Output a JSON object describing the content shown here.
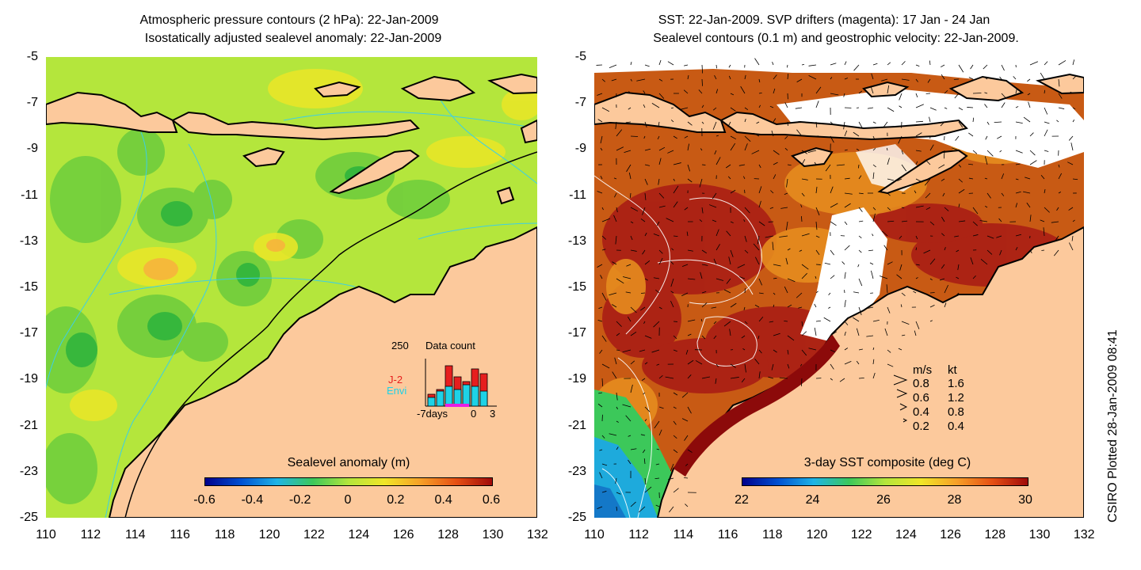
{
  "left": {
    "title_line1": "Atmospheric pressure contours (2 hPa): 22-Jan-2009",
    "title_line2": "Isostatically adjusted sealevel anomaly: 22-Jan-2009",
    "colorbar_title": "Sealevel anomaly (m)",
    "colorbar_ticks": [
      "-0.6",
      "-0.4",
      "-0.2",
      "0",
      "0.2",
      "0.4",
      "0.6"
    ],
    "inset": {
      "count_label": "250",
      "title": "Data count",
      "series1": "J-2",
      "series2": "Envi",
      "x_left": "-7days",
      "x_mid": "0",
      "x_right": "3"
    }
  },
  "right": {
    "title_line1": "SST: 22-Jan-2009. SVP drifters (magenta): 17 Jan - 24 Jan",
    "title_line2": "Sealevel contours (0.1 m) and geostrophic velocity: 22-Jan-2009.",
    "colorbar_title": "3-day SST composite (deg C)",
    "colorbar_ticks": [
      "22",
      "24",
      "26",
      "28",
      "30"
    ],
    "velocity_legend": {
      "header_ms": "m/s",
      "header_kt": "kt",
      "rows": [
        {
          "ms": "0.8",
          "kt": "1.6"
        },
        {
          "ms": "0.6",
          "kt": "1.2"
        },
        {
          "ms": "0.4",
          "kt": "0.8"
        },
        {
          "ms": "0.2",
          "kt": "0.4"
        }
      ]
    }
  },
  "axes": {
    "y_labels": [
      "-5",
      "-7",
      "-9",
      "-11",
      "-13",
      "-15",
      "-17",
      "-19",
      "-21",
      "-23",
      "-25"
    ],
    "x_labels": [
      "110",
      "112",
      "114",
      "116",
      "118",
      "120",
      "122",
      "124",
      "126",
      "128",
      "130",
      "132"
    ]
  },
  "credit": "CSIRO Plotted 28-Jan-2009 08:41",
  "colors": {
    "land": "#fcc99c",
    "sla_background": "#b4e63c",
    "sst_background": "#c85a14"
  }
}
